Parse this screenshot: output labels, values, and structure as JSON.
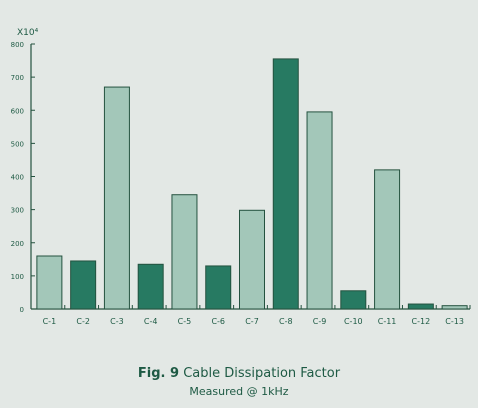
{
  "chart_data": {
    "type": "bar",
    "title": "",
    "xlabel": "",
    "ylabel": "",
    "y_multiplier_label": "X10⁴",
    "categories": [
      "C-1",
      "C-2",
      "C-3",
      "C-4",
      "C-5",
      "C-6",
      "C-7",
      "C-8",
      "C-9",
      "C-10",
      "C-11",
      "C-12",
      "C-13"
    ],
    "values": [
      160,
      145,
      670,
      135,
      345,
      130,
      298,
      755,
      595,
      55,
      420,
      15,
      10
    ],
    "highlighted": [
      false,
      true,
      false,
      true,
      false,
      true,
      false,
      true,
      false,
      true,
      false,
      true,
      false
    ],
    "yticks": [
      0,
      100,
      200,
      300,
      400,
      500,
      600,
      700,
      800
    ],
    "ylim": [
      0,
      800
    ],
    "grid": false,
    "legend": "none",
    "colors": {
      "bar_light": "#a3c7b9",
      "bar_dark": "#277a62",
      "axis": "#24523f",
      "text": "#1e5a44"
    }
  },
  "caption": {
    "fig_label": "Fig. 9",
    "title": "Cable Dissipation Factor",
    "subtitle": "Measured @ 1kHz"
  }
}
